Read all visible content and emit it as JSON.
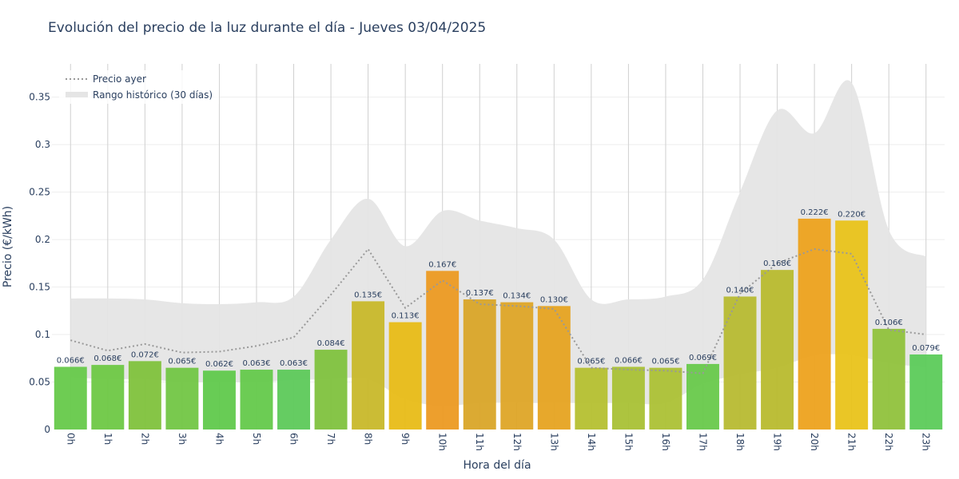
{
  "chart_data": {
    "type": "bar",
    "title": "Evolución del precio de la luz durante el día - Jueves 03/04/2025",
    "xlabel": "Hora del día",
    "ylabel": "Precio (€/kWh)",
    "ylim": [
      0,
      0.385
    ],
    "yticks": [
      0,
      0.05,
      0.1,
      0.15,
      0.2,
      0.25,
      0.3,
      0.35
    ],
    "ytick_labels": [
      "0",
      "0.05",
      "0.1",
      "0.15",
      "0.2",
      "0.25",
      "0.3",
      "0.35"
    ],
    "categories": [
      "0h",
      "1h",
      "2h",
      "3h",
      "4h",
      "5h",
      "6h",
      "7h",
      "8h",
      "9h",
      "10h",
      "11h",
      "12h",
      "13h",
      "14h",
      "15h",
      "16h",
      "17h",
      "18h",
      "19h",
      "20h",
      "21h",
      "22h",
      "23h"
    ],
    "values": [
      0.066,
      0.068,
      0.072,
      0.065,
      0.062,
      0.063,
      0.063,
      0.084,
      0.135,
      0.113,
      0.167,
      0.137,
      0.134,
      0.13,
      0.065,
      0.066,
      0.065,
      0.069,
      0.14,
      0.168,
      0.222,
      0.22,
      0.106,
      0.079
    ],
    "value_labels": [
      "0.066€",
      "0.068€",
      "0.072€",
      "0.065€",
      "0.062€",
      "0.063€",
      "0.063€",
      "0.084€",
      "0.135€",
      "0.113€",
      "0.167€",
      "0.137€",
      "0.134€",
      "0.130€",
      "0.065€",
      "0.066€",
      "0.065€",
      "0.069€",
      "0.140€",
      "0.168€",
      "0.222€",
      "0.220€",
      "0.106€",
      "0.079€"
    ],
    "bar_colors": [
      "#66c94a",
      "#6ec845",
      "#80c23c",
      "#72c644",
      "#60c94c",
      "#64c94b",
      "#5dc95a",
      "#7fc23e",
      "#c8b82a",
      "#e8bc17",
      "#ec9a22",
      "#d9a528",
      "#dea527",
      "#e6a321",
      "#b5c030",
      "#a9c135",
      "#acc135",
      "#68c94b",
      "#b7bb31",
      "#b8bb2e",
      "#eda21e",
      "#e9c31a",
      "#90c23c",
      "#5ccb5a"
    ],
    "series": [
      {
        "name": "Precio ayer",
        "values": [
          0.094,
          0.083,
          0.09,
          0.081,
          0.082,
          0.088,
          0.097,
          0.142,
          0.19,
          0.128,
          0.157,
          0.132,
          0.13,
          0.127,
          0.065,
          0.063,
          0.062,
          0.059,
          0.143,
          0.175,
          0.19,
          0.185,
          0.105,
          0.1
        ],
        "color": "#999999",
        "style": "dotted"
      },
      {
        "name": "Rango histórico (30 días)",
        "upper": [
          0.138,
          0.138,
          0.137,
          0.133,
          0.132,
          0.134,
          0.14,
          0.2,
          0.243,
          0.193,
          0.23,
          0.22,
          0.212,
          0.2,
          0.137,
          0.137,
          0.14,
          0.158,
          0.25,
          0.336,
          0.312,
          0.365,
          0.21,
          0.182
        ],
        "lower": [
          0.055,
          0.053,
          0.053,
          0.05,
          0.05,
          0.05,
          0.052,
          0.053,
          0.053,
          0.032,
          0.025,
          0.028,
          0.028,
          0.028,
          0.028,
          0.028,
          0.028,
          0.048,
          0.058,
          0.065,
          0.078,
          0.078,
          0.07,
          0.065
        ],
        "color": "#e5e5e5"
      }
    ],
    "legend_position": "top-left",
    "grid": true
  }
}
